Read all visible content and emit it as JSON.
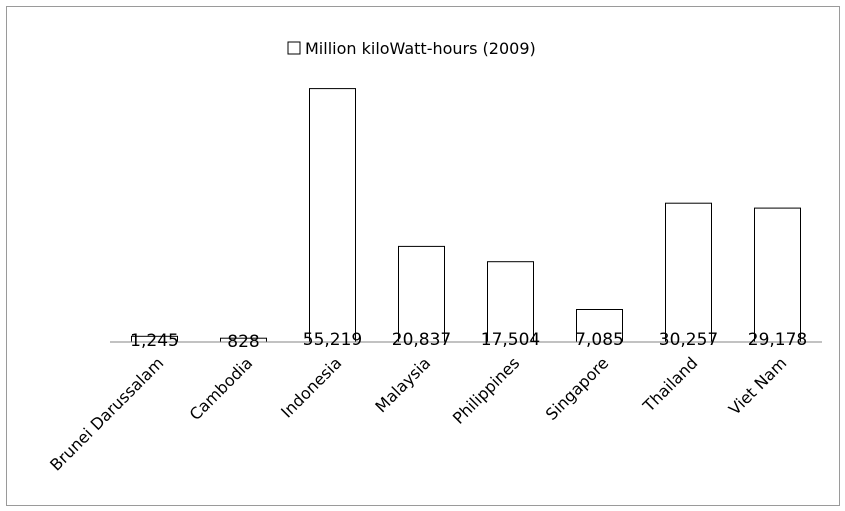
{
  "chart_data": {
    "type": "bar",
    "legend": {
      "label": "Million kiloWatt-hours (2009)",
      "placement": "top"
    },
    "categories": [
      "Brunei Darussalam",
      "Cambodia",
      "Indonesia",
      "Malaysia",
      "Philippines",
      "Singapore",
      "Thailand",
      "Viet Nam"
    ],
    "series": [
      {
        "name": "Million kiloWatt-hours (2009)",
        "values": [
          1245,
          828,
          55219,
          20837,
          17504,
          7085,
          30257,
          29178
        ],
        "labels": [
          "1,245",
          "828",
          "55,219",
          "20,837",
          "17,504",
          "7,085",
          "30,257",
          "29,178"
        ]
      }
    ],
    "ylim": [
      0,
      60000
    ],
    "grid": false,
    "colors": {
      "bar_fill": "#ffffff",
      "bar_stroke": "#000000",
      "axis": "#868686"
    }
  }
}
